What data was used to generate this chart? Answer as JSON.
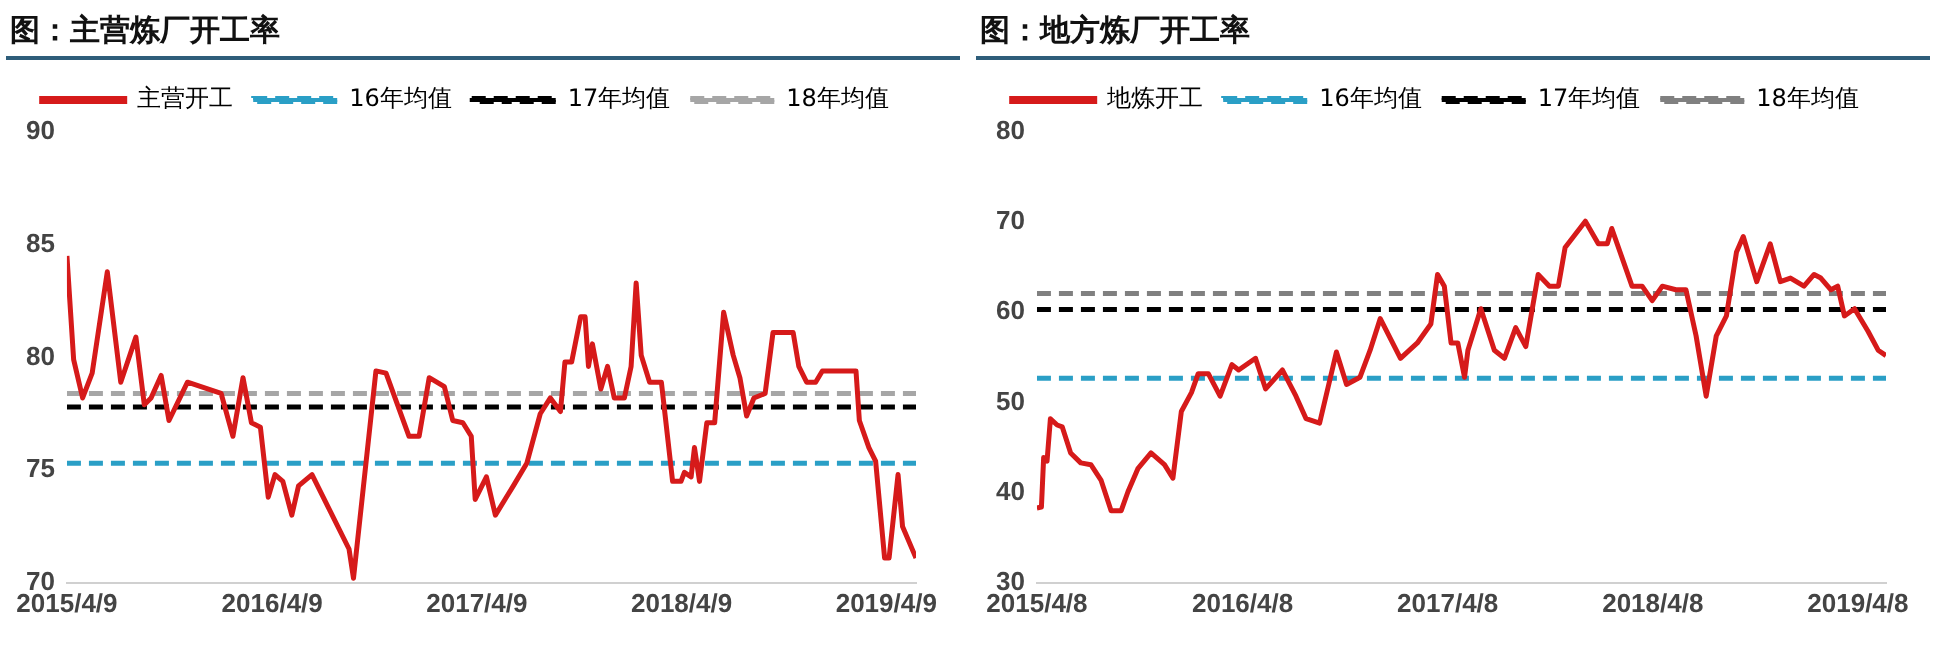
{
  "chart_data": [
    {
      "type": "line",
      "title": "图：主营炼厂开工率",
      "legend": "top",
      "grid": false,
      "marker": "none",
      "line_style": "solid",
      "xlim": [
        "2015-04-09",
        "2019-06-01"
      ],
      "xticks": [
        {
          "value": "2015-04-09",
          "label": "2015/4/9"
        },
        {
          "value": "2016-04-09",
          "label": "2016/4/9"
        },
        {
          "value": "2017-04-09",
          "label": "2017/4/9"
        },
        {
          "value": "2018-04-09",
          "label": "2018/4/9"
        },
        {
          "value": "2019-04-09",
          "label": "2019/4/9"
        }
      ],
      "ylim": [
        70,
        90
      ],
      "yticks": [
        70,
        75,
        80,
        85,
        90
      ],
      "series": [
        {
          "name": "主营开工",
          "color": "#d61a1a",
          "x": [
            "2015-04-09",
            "2015-04-21",
            "2015-05-07",
            "2015-05-24",
            "2015-06-20",
            "2015-07-14",
            "2015-08-10",
            "2015-08-25",
            "2015-09-06",
            "2015-09-24",
            "2015-10-08",
            "2015-11-10",
            "2016-01-09",
            "2016-01-30",
            "2016-02-17",
            "2016-03-03",
            "2016-03-19",
            "2016-04-02",
            "2016-04-14",
            "2016-04-28",
            "2016-05-14",
            "2016-05-26",
            "2016-06-19",
            "2016-08-24",
            "2016-09-01",
            "2016-10-11",
            "2016-10-29",
            "2016-12-09",
            "2016-12-27",
            "2017-01-14",
            "2017-02-10",
            "2017-02-25",
            "2017-03-15",
            "2017-03-30",
            "2017-04-06",
            "2017-04-26",
            "2017-05-12",
            "2017-06-13",
            "2017-07-07",
            "2017-07-31",
            "2017-08-18",
            "2017-09-05",
            "2017-09-13",
            "2017-09-25",
            "2017-10-11",
            "2017-10-19",
            "2017-10-25",
            "2017-11-01",
            "2017-11-16",
            "2017-11-28",
            "2017-12-10",
            "2017-12-28",
            "2018-01-09",
            "2018-01-18",
            "2018-01-27",
            "2018-02-11",
            "2018-03-04",
            "2018-03-24",
            "2018-04-08",
            "2018-04-14",
            "2018-04-26",
            "2018-05-02",
            "2018-05-11",
            "2018-05-24",
            "2018-06-07",
            "2018-06-23",
            "2018-07-10",
            "2018-07-22",
            "2018-08-03",
            "2018-08-16",
            "2018-09-05",
            "2018-09-19",
            "2018-10-25",
            "2018-11-04",
            "2018-11-18",
            "2018-12-04",
            "2018-12-16",
            "2019-02-14",
            "2019-02-20",
            "2019-03-09",
            "2019-03-21",
            "2019-04-06",
            "2019-04-14",
            "2019-04-30",
            "2019-05-08",
            "2019-06-01"
          ],
          "values": [
            84.5,
            79.9,
            78.2,
            79.3,
            83.8,
            78.9,
            80.9,
            77.9,
            78.2,
            79.2,
            77.2,
            78.9,
            78.4,
            76.5,
            79.1,
            77.1,
            76.9,
            73.8,
            74.8,
            74.5,
            73.0,
            74.3,
            74.8,
            71.5,
            70.2,
            79.4,
            79.3,
            76.5,
            76.5,
            79.1,
            78.7,
            77.2,
            77.1,
            76.5,
            73.7,
            74.7,
            73.0,
            74.3,
            75.3,
            77.5,
            78.2,
            77.6,
            79.8,
            79.8,
            81.8,
            81.8,
            79.6,
            80.6,
            78.6,
            79.6,
            78.2,
            78.2,
            79.6,
            83.3,
            80.1,
            78.9,
            78.9,
            74.5,
            74.5,
            74.9,
            74.7,
            76.0,
            74.5,
            77.1,
            77.1,
            82.0,
            80.1,
            79.1,
            77.4,
            78.2,
            78.4,
            81.1,
            81.1,
            79.6,
            78.9,
            78.9,
            79.4,
            79.4,
            77.2,
            76.0,
            75.4,
            71.1,
            71.1,
            74.8,
            72.5,
            71.1
          ]
        }
      ],
      "ref_lines": [
        {
          "axis": "y",
          "value": 75.3,
          "label": "16年均值",
          "color": "#2a9fc6",
          "line_style": "dashed"
        },
        {
          "axis": "y",
          "value": 77.8,
          "label": "17年均值",
          "color": "#000000",
          "line_style": "dashed"
        },
        {
          "axis": "y",
          "value": 78.4,
          "label": "18年均值",
          "color": "#a6a6a6",
          "line_style": "dashed"
        }
      ]
    },
    {
      "type": "line",
      "title": "图：地方炼厂开工率",
      "legend": "top",
      "grid": false,
      "marker": "none",
      "line_style": "solid",
      "xlim": [
        "2015-04-08",
        "2019-05-28"
      ],
      "xticks": [
        {
          "value": "2015-04-08",
          "label": "2015/4/8"
        },
        {
          "value": "2016-04-08",
          "label": "2016/4/8"
        },
        {
          "value": "2017-04-08",
          "label": "2017/4/8"
        },
        {
          "value": "2018-04-08",
          "label": "2018/4/8"
        },
        {
          "value": "2019-04-08",
          "label": "2019/4/8"
        }
      ],
      "ylim": [
        30,
        80
      ],
      "yticks": [
        30,
        40,
        50,
        60,
        70,
        80
      ],
      "series": [
        {
          "name": "地炼开工",
          "color": "#d61a1a",
          "x": [
            "2015-04-08",
            "2015-04-16",
            "2015-04-20",
            "2015-04-26",
            "2015-05-02",
            "2015-05-14",
            "2015-05-23",
            "2015-06-07",
            "2015-06-25",
            "2015-07-13",
            "2015-07-31",
            "2015-08-18",
            "2015-09-05",
            "2015-09-17",
            "2015-10-05",
            "2015-10-28",
            "2015-11-21",
            "2015-12-06",
            "2015-12-21",
            "2016-01-08",
            "2016-01-20",
            "2016-02-07",
            "2016-02-28",
            "2016-03-20",
            "2016-04-01",
            "2016-05-01",
            "2016-05-19",
            "2016-06-18",
            "2016-07-12",
            "2016-07-30",
            "2016-08-23",
            "2016-09-22",
            "2016-10-10",
            "2016-11-03",
            "2016-11-21",
            "2016-12-09",
            "2017-01-14",
            "2017-02-13",
            "2017-03-09",
            "2017-03-21",
            "2017-04-02",
            "2017-04-14",
            "2017-04-26",
            "2017-05-08",
            "2017-05-14",
            "2017-06-06",
            "2017-06-30",
            "2017-07-18",
            "2017-08-07",
            "2017-08-25",
            "2017-09-16",
            "2017-10-06",
            "2017-10-22",
            "2017-11-03",
            "2017-12-09",
            "2018-01-01",
            "2018-01-17",
            "2018-01-25",
            "2018-03-02",
            "2018-03-20",
            "2018-04-07",
            "2018-04-25",
            "2018-05-19",
            "2018-06-06",
            "2018-06-24",
            "2018-07-12",
            "2018-07-30",
            "2018-08-17",
            "2018-09-04",
            "2018-09-16",
            "2018-10-10",
            "2018-11-03",
            "2018-11-21",
            "2018-12-09",
            "2019-01-02",
            "2019-01-20",
            "2019-02-01",
            "2019-02-19",
            "2019-03-03",
            "2019-03-15",
            "2019-04-02",
            "2019-04-26",
            "2019-05-14",
            "2019-05-28"
          ],
          "values": [
            38.3,
            38.4,
            43.9,
            43.5,
            48.2,
            47.5,
            47.3,
            44.4,
            43.3,
            43.1,
            41.4,
            38.0,
            38.0,
            40.1,
            42.7,
            44.4,
            43.1,
            41.6,
            49.0,
            51.1,
            53.2,
            53.2,
            50.7,
            54.2,
            53.6,
            54.9,
            51.5,
            53.6,
            50.7,
            48.2,
            47.7,
            55.6,
            52.0,
            52.8,
            55.8,
            59.3,
            54.9,
            56.6,
            58.7,
            64.2,
            62.9,
            56.6,
            56.6,
            52.8,
            55.8,
            60.4,
            55.8,
            54.9,
            58.3,
            56.2,
            64.2,
            62.9,
            62.9,
            67.2,
            70.1,
            67.6,
            67.6,
            69.3,
            62.9,
            62.9,
            61.3,
            62.9,
            62.5,
            62.5,
            57.4,
            50.7,
            57.4,
            59.6,
            66.7,
            68.4,
            63.4,
            67.6,
            63.4,
            63.8,
            62.9,
            64.2,
            63.8,
            62.5,
            62.9,
            59.6,
            60.4,
            57.9,
            55.8,
            55.2
          ]
        }
      ],
      "ref_lines": [
        {
          "axis": "y",
          "value": 52.7,
          "label": "16年均值",
          "color": "#2a9fc6",
          "line_style": "dashed"
        },
        {
          "axis": "y",
          "value": 60.3,
          "label": "17年均值",
          "color": "#000000",
          "line_style": "dashed"
        },
        {
          "axis": "y",
          "value": 62.1,
          "label": "18年均值",
          "color": "#808080",
          "line_style": "dashed"
        }
      ]
    }
  ]
}
